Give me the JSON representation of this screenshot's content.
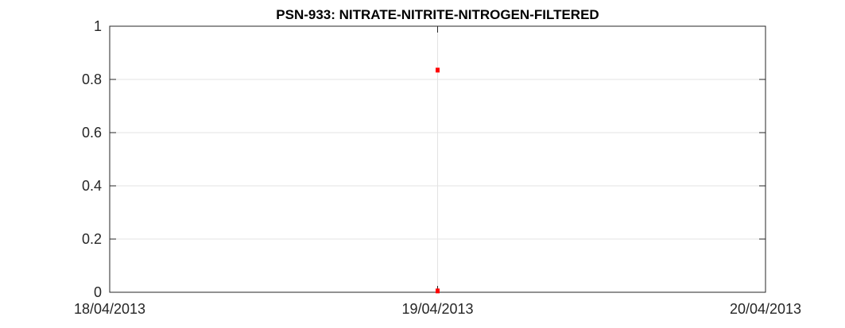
{
  "chart_data": {
    "type": "scatter",
    "title": "PSN-933: NITRATE-NITRITE-NITROGEN-FILTERED",
    "xlabel": "",
    "ylabel": "",
    "x_ticks": [
      "18/04/2013",
      "19/04/2013",
      "20/04/2013"
    ],
    "x_tick_values": [
      0,
      1,
      2
    ],
    "xlim": [
      0,
      2
    ],
    "ylim": [
      0,
      1
    ],
    "y_ticks": [
      0,
      0.2,
      0.4,
      0.6,
      0.8,
      1
    ],
    "y_tick_labels": [
      "0",
      "0.2",
      "0.4",
      "0.6",
      "0.8",
      "1"
    ],
    "grid": true,
    "series": [
      {
        "name": "PSN-933",
        "color": "#ff0000",
        "points": [
          {
            "x": 1,
            "y": 0.835
          },
          {
            "x": 1,
            "y": 0.005
          }
        ]
      }
    ]
  }
}
